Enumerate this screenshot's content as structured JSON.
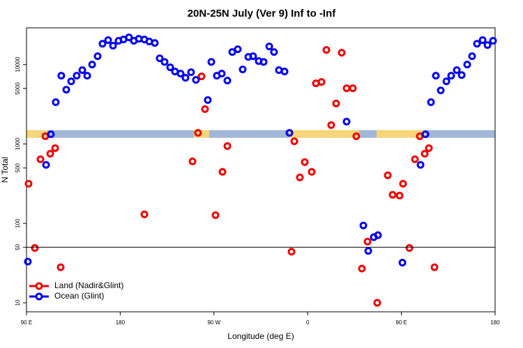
{
  "chart_data": {
    "type": "scatter",
    "title": "20N-25N July (Ver 9)   Inf to -Inf",
    "x_label": "Longitude (deg E)",
    "y_label": "N Total",
    "log_y": true,
    "xlim": [
      90,
      540
    ],
    "ylim": [
      7.7,
      29000
    ],
    "xticks": [
      {
        "value": 90,
        "label": "90 E"
      },
      180,
      {
        "value": 270,
        "label": "90 W"
      },
      {
        "value": 360,
        "label": "0"
      },
      {
        "value": 450,
        "label": "90 E"
      },
      {
        "value": 540,
        "label": "180"
      }
    ],
    "yticks": [
      10,
      50,
      100,
      500,
      1000,
      5000,
      10000
    ],
    "hline": 50,
    "legend": "bottomleft",
    "series": [
      {
        "name": "Land (Nadir&Glint)",
        "color": "#ee0000",
        "x": [
          92.0,
          98.0,
          103.4,
          108.1,
          112.8,
          117.5,
          122.8,
          203.2,
          249.4,
          254.7,
          258.1,
          261.4,
          271.5,
          278.2,
          282.9,
          344.5,
          347.2,
          352.5,
          357.2,
          363.9,
          367.9,
          373.3,
          378.0,
          382.6,
          387.3,
          392.7,
          397.4,
          403.4,
          406.7,
          412.1,
          417.5,
          426.8,
          436.9,
          441.6,
          448.3,
          451.6,
          457.7,
          463.0,
          467.7,
          472.4,
          476.4,
          481.8
        ],
        "values": [
          316,
          49,
          641,
          1250,
          754,
          886,
          28,
          130,
          604,
          1380,
          7100,
          2750,
          127,
          446,
          942,
          44,
          1080,
          379,
          591,
          446,
          5800,
          6040,
          15280,
          1730,
          3230,
          14100,
          5030,
          5030,
          1250,
          27,
          59,
          10,
          403,
          229,
          224,
          316,
          49,
          641,
          1250,
          754,
          886,
          28
        ]
      },
      {
        "name": "Ocean (Glint)",
        "color": "#0000ee",
        "x": [
          91.3,
          108.8,
          113.4,
          118.1,
          123.4,
          128.2,
          132.9,
          138.2,
          143.6,
          148.3,
          153.0,
          158.3,
          163.0,
          168.4,
          173.1,
          178.4,
          183.1,
          188.4,
          193.1,
          197.8,
          203.2,
          207.9,
          213.2,
          217.9,
          222.6,
          228.0,
          232.6,
          238.0,
          242.7,
          248.0,
          252.7,
          264.1,
          267.5,
          272.8,
          277.5,
          282.9,
          287.6,
          292.9,
          297.6,
          303.0,
          307.6,
          313.0,
          317.7,
          323.1,
          327.7,
          332.4,
          337.8,
          342.5,
          397.4,
          413.5,
          418.2,
          423.5,
          427.5,
          451.0,
          468.4,
          473.1,
          478.4,
          483.1,
          487.8,
          493.2,
          497.8,
          503.2,
          507.9,
          513.2,
          517.9,
          522.6,
          528.0,
          532.7,
          538.0
        ],
        "values": [
          33,
          546,
          1327,
          3360,
          7240,
          4830,
          6150,
          7240,
          8510,
          7240,
          10000,
          12740,
          18300,
          20300,
          17300,
          19900,
          20700,
          22000,
          19900,
          21100,
          20700,
          19500,
          18700,
          12000,
          10800,
          9230,
          8170,
          7690,
          6810,
          8010,
          6410,
          3570,
          10800,
          7240,
          7690,
          6290,
          14390,
          15600,
          8690,
          12480,
          12740,
          11060,
          10800,
          16900,
          14390,
          8510,
          8170,
          1380,
          1910,
          94,
          45,
          67,
          71,
          32,
          546,
          1327,
          3360,
          7240,
          4730,
          6150,
          7240,
          8510,
          7380,
          10000,
          12740,
          18300,
          20300,
          17600,
          19900
        ]
      }
    ]
  }
}
